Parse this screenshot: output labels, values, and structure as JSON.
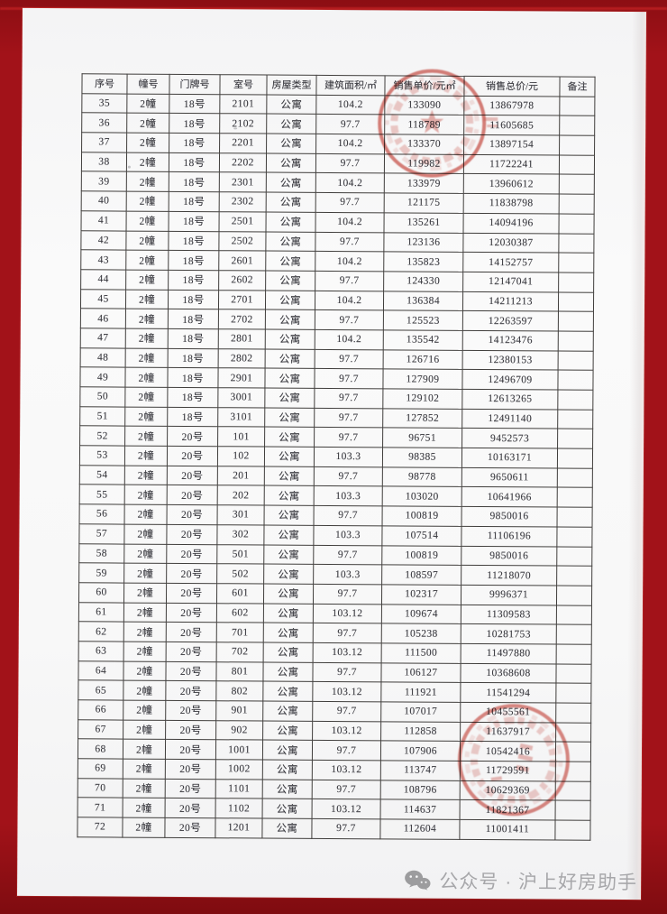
{
  "frame": {
    "background_color": "#a21219",
    "page_color": "#f8f8f8"
  },
  "stamps": {
    "top": "red-circular-seal-stamp",
    "bottom": "red-circular-seal-stamp",
    "color": "#c94b43"
  },
  "watermark": {
    "icon": "wechat-icon",
    "text": "公众号 · 沪上好房助手",
    "color": "#a7a7aa"
  },
  "table": {
    "headers": [
      "序号",
      "幢号",
      "门牌号",
      "室号",
      "房屋类型",
      "建筑面积/㎡",
      "销售单价/元㎡",
      "销售总价/元",
      "备注"
    ],
    "rows": [
      [
        "35",
        "2幢",
        "18号",
        "2101",
        "公寓",
        "104.2",
        "133090",
        "13867978",
        ""
      ],
      [
        "36",
        "2幢",
        "18号",
        "2102",
        "公寓",
        "97.7",
        "118789",
        "11605685",
        ""
      ],
      [
        "37",
        "2幢",
        "18号",
        "2201",
        "公寓",
        "104.2",
        "133370",
        "13897154",
        ""
      ],
      [
        "38",
        "2幢",
        "18号",
        "2202",
        "公寓",
        "97.7",
        "119982",
        "11722241",
        ""
      ],
      [
        "39",
        "2幢",
        "18号",
        "2301",
        "公寓",
        "104.2",
        "133979",
        "13960612",
        ""
      ],
      [
        "40",
        "2幢",
        "18号",
        "2302",
        "公寓",
        "97.7",
        "121175",
        "11838798",
        ""
      ],
      [
        "41",
        "2幢",
        "18号",
        "2501",
        "公寓",
        "104.2",
        "135261",
        "14094196",
        ""
      ],
      [
        "42",
        "2幢",
        "18号",
        "2502",
        "公寓",
        "97.7",
        "123136",
        "12030387",
        ""
      ],
      [
        "43",
        "2幢",
        "18号",
        "2601",
        "公寓",
        "104.2",
        "135823",
        "14152757",
        ""
      ],
      [
        "44",
        "2幢",
        "18号",
        "2602",
        "公寓",
        "97.7",
        "124330",
        "12147041",
        ""
      ],
      [
        "45",
        "2幢",
        "18号",
        "2701",
        "公寓",
        "104.2",
        "136384",
        "14211213",
        ""
      ],
      [
        "46",
        "2幢",
        "18号",
        "2702",
        "公寓",
        "97.7",
        "125523",
        "12263597",
        ""
      ],
      [
        "47",
        "2幢",
        "18号",
        "2801",
        "公寓",
        "104.2",
        "135542",
        "14123476",
        ""
      ],
      [
        "48",
        "2幢",
        "18号",
        "2802",
        "公寓",
        "97.7",
        "126716",
        "12380153",
        ""
      ],
      [
        "49",
        "2幢",
        "18号",
        "2901",
        "公寓",
        "97.7",
        "127909",
        "12496709",
        ""
      ],
      [
        "50",
        "2幢",
        "18号",
        "3001",
        "公寓",
        "97.7",
        "129102",
        "12613265",
        ""
      ],
      [
        "51",
        "2幢",
        "18号",
        "3101",
        "公寓",
        "97.7",
        "127852",
        "12491140",
        ""
      ],
      [
        "52",
        "2幢",
        "20号",
        "101",
        "公寓",
        "97.7",
        "96751",
        "9452573",
        ""
      ],
      [
        "53",
        "2幢",
        "20号",
        "102",
        "公寓",
        "103.3",
        "98385",
        "10163171",
        ""
      ],
      [
        "54",
        "2幢",
        "20号",
        "201",
        "公寓",
        "97.7",
        "98778",
        "9650611",
        ""
      ],
      [
        "55",
        "2幢",
        "20号",
        "202",
        "公寓",
        "103.3",
        "103020",
        "10641966",
        ""
      ],
      [
        "56",
        "2幢",
        "20号",
        "301",
        "公寓",
        "97.7",
        "100819",
        "9850016",
        ""
      ],
      [
        "57",
        "2幢",
        "20号",
        "302",
        "公寓",
        "103.3",
        "107514",
        "11106196",
        ""
      ],
      [
        "58",
        "2幢",
        "20号",
        "501",
        "公寓",
        "97.7",
        "100819",
        "9850016",
        ""
      ],
      [
        "59",
        "2幢",
        "20号",
        "502",
        "公寓",
        "103.3",
        "108597",
        "11218070",
        ""
      ],
      [
        "60",
        "2幢",
        "20号",
        "601",
        "公寓",
        "97.7",
        "102317",
        "9996371",
        ""
      ],
      [
        "61",
        "2幢",
        "20号",
        "602",
        "公寓",
        "103.12",
        "109674",
        "11309583",
        ""
      ],
      [
        "62",
        "2幢",
        "20号",
        "701",
        "公寓",
        "97.7",
        "105238",
        "10281753",
        ""
      ],
      [
        "63",
        "2幢",
        "20号",
        "702",
        "公寓",
        "103.12",
        "111500",
        "11497880",
        ""
      ],
      [
        "64",
        "2幢",
        "20号",
        "801",
        "公寓",
        "97.7",
        "106127",
        "10368608",
        ""
      ],
      [
        "65",
        "2幢",
        "20号",
        "802",
        "公寓",
        "103.12",
        "111921",
        "11541294",
        ""
      ],
      [
        "66",
        "2幢",
        "20号",
        "901",
        "公寓",
        "97.7",
        "107017",
        "10455561",
        ""
      ],
      [
        "67",
        "2幢",
        "20号",
        "902",
        "公寓",
        "103.12",
        "112858",
        "11637917",
        ""
      ],
      [
        "68",
        "2幢",
        "20号",
        "1001",
        "公寓",
        "97.7",
        "107906",
        "10542416",
        ""
      ],
      [
        "69",
        "2幢",
        "20号",
        "1002",
        "公寓",
        "103.12",
        "113747",
        "11729591",
        ""
      ],
      [
        "70",
        "2幢",
        "20号",
        "1101",
        "公寓",
        "97.7",
        "108796",
        "10629369",
        ""
      ],
      [
        "71",
        "2幢",
        "20号",
        "1102",
        "公寓",
        "103.12",
        "114637",
        "11821367",
        ""
      ],
      [
        "72",
        "2幢",
        "20号",
        "1201",
        "公寓",
        "97.7",
        "112604",
        "11001411",
        ""
      ]
    ]
  }
}
